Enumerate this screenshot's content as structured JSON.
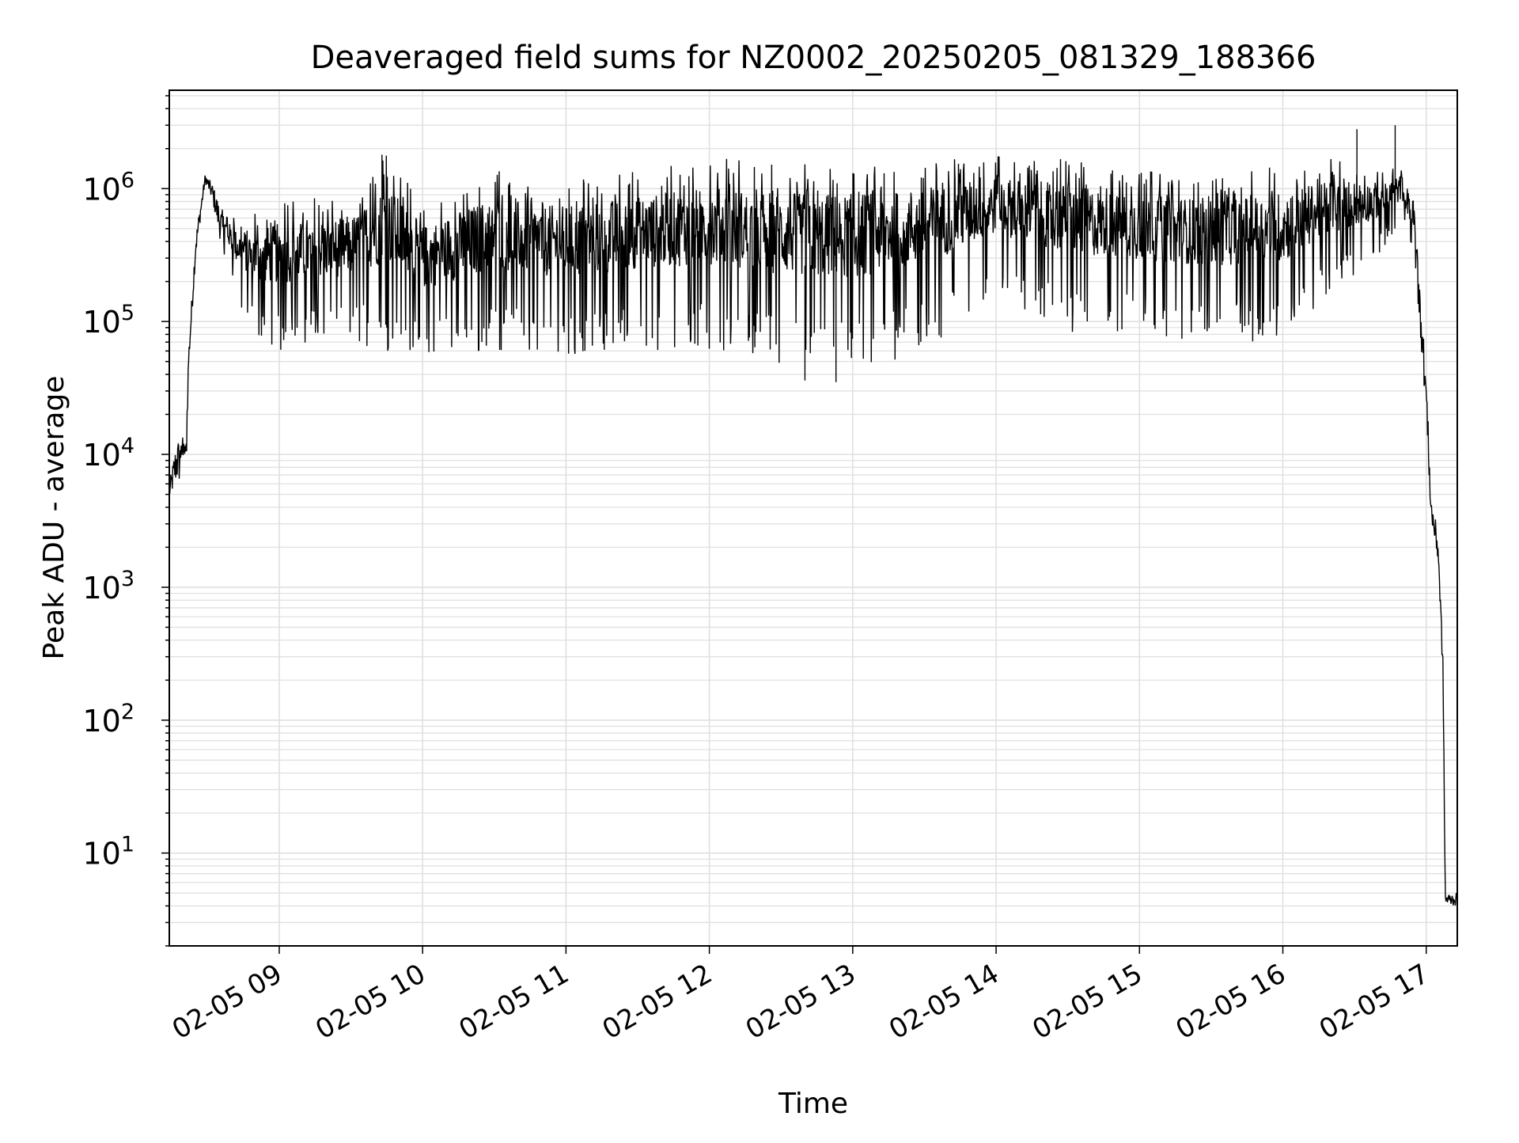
{
  "chart_data": {
    "type": "line",
    "title": "Deaveraged field sums for NZ0002_20250205_081329_188366",
    "xlabel": "Time",
    "ylabel": "Peak ADU - average",
    "yscale": "log",
    "grid": true,
    "grid_minor": true,
    "line_color": "#000000",
    "grid_color": "#e0e0e0",
    "xlim": [
      "2025-02-05 08:14",
      "2025-02-05 17:13"
    ],
    "ylim": [
      2,
      5500000
    ],
    "x_ticks": [
      {
        "value": "2025-02-05 09:00",
        "label": "02-05 09"
      },
      {
        "value": "2025-02-05 10:00",
        "label": "02-05 10"
      },
      {
        "value": "2025-02-05 11:00",
        "label": "02-05 11"
      },
      {
        "value": "2025-02-05 12:00",
        "label": "02-05 12"
      },
      {
        "value": "2025-02-05 13:00",
        "label": "02-05 13"
      },
      {
        "value": "2025-02-05 14:00",
        "label": "02-05 14"
      },
      {
        "value": "2025-02-05 15:00",
        "label": "02-05 15"
      },
      {
        "value": "2025-02-05 16:00",
        "label": "02-05 16"
      },
      {
        "value": "2025-02-05 17:00",
        "label": "02-05 17"
      }
    ],
    "y_ticks": [
      {
        "value": 10,
        "base": "10",
        "exp": "1"
      },
      {
        "value": 100,
        "base": "10",
        "exp": "2"
      },
      {
        "value": 1000,
        "base": "10",
        "exp": "3"
      },
      {
        "value": 10000,
        "base": "10",
        "exp": "4"
      },
      {
        "value": 100000,
        "base": "10",
        "exp": "5"
      },
      {
        "value": 1000000,
        "base": "10",
        "exp": "6"
      }
    ],
    "series": [
      {
        "envelope": [
          {
            "t": "2025-02-05 08:14",
            "low": 4500,
            "high": 6000
          },
          {
            "t": "2025-02-05 08:17",
            "low": 6000,
            "high": 13000
          },
          {
            "t": "2025-02-05 08:21",
            "low": 6000,
            "high": 14000
          },
          {
            "t": "2025-02-05 08:22",
            "low": 40000,
            "high": 60000
          },
          {
            "t": "2025-02-05 08:25",
            "low": 300000,
            "high": 450000
          },
          {
            "t": "2025-02-05 08:29",
            "low": 1100000,
            "high": 1300000
          },
          {
            "t": "2025-02-05 08:32",
            "low": 800000,
            "high": 1100000
          },
          {
            "t": "2025-02-05 08:36",
            "low": 350000,
            "high": 700000
          },
          {
            "t": "2025-02-05 08:42",
            "low": 150000,
            "high": 600000
          },
          {
            "t": "2025-02-05 08:50",
            "low": 70000,
            "high": 700000
          },
          {
            "t": "2025-02-05 09:00",
            "low": 60000,
            "high": 800000
          },
          {
            "t": "2025-02-05 09:30",
            "low": 70000,
            "high": 900000
          },
          {
            "t": "2025-02-05 09:45",
            "low": 60000,
            "high": 1800000
          },
          {
            "t": "2025-02-05 10:00",
            "low": 50000,
            "high": 800000
          },
          {
            "t": "2025-02-05 10:30",
            "low": 60000,
            "high": 1400000
          },
          {
            "t": "2025-02-05 10:50",
            "low": 55000,
            "high": 1200000
          },
          {
            "t": "2025-02-05 11:00",
            "low": 50000,
            "high": 1200000
          },
          {
            "t": "2025-02-05 11:30",
            "low": 60000,
            "high": 1400000
          },
          {
            "t": "2025-02-05 12:00",
            "low": 60000,
            "high": 1700000
          },
          {
            "t": "2025-02-05 12:30",
            "low": 45000,
            "high": 1600000
          },
          {
            "t": "2025-02-05 13:00",
            "low": 40000,
            "high": 1600000
          },
          {
            "t": "2025-02-05 13:30",
            "low": 60000,
            "high": 1700000
          },
          {
            "t": "2025-02-05 14:00",
            "low": 150000,
            "high": 1800000
          },
          {
            "t": "2025-02-05 14:30",
            "low": 80000,
            "high": 1700000
          },
          {
            "t": "2025-02-05 15:00",
            "low": 80000,
            "high": 1400000
          },
          {
            "t": "2025-02-05 15:30",
            "low": 70000,
            "high": 1300000
          },
          {
            "t": "2025-02-05 16:00",
            "low": 70000,
            "high": 1500000
          },
          {
            "t": "2025-02-05 16:20",
            "low": 150000,
            "high": 1700000
          },
          {
            "t": "2025-02-05 16:40",
            "low": 300000,
            "high": 1400000
          },
          {
            "t": "2025-02-05 16:50",
            "low": 500000,
            "high": 1500000
          },
          {
            "t": "2025-02-05 16:55",
            "low": 300000,
            "high": 800000
          },
          {
            "t": "2025-02-05 17:00",
            "low": 20000,
            "high": 40000
          },
          {
            "t": "2025-02-05 17:02",
            "low": 3000,
            "high": 5000
          },
          {
            "t": "2025-02-05 17:05",
            "low": 1500,
            "high": 2500
          },
          {
            "t": "2025-02-05 17:07",
            "low": 200,
            "high": 300
          },
          {
            "t": "2025-02-05 17:08",
            "low": 4,
            "high": 5
          },
          {
            "t": "2025-02-05 17:13",
            "low": 4,
            "high": 5
          }
        ],
        "spikes": [
          {
            "t": "2025-02-05 09:43",
            "value": 1800000
          },
          {
            "t": "2025-02-05 16:31",
            "value": 2800000
          },
          {
            "t": "2025-02-05 16:47",
            "value": 3000000
          },
          {
            "t": "2025-02-05 12:53",
            "value": 35000
          },
          {
            "t": "2025-02-05 12:40",
            "value": 36000
          }
        ]
      }
    ]
  }
}
